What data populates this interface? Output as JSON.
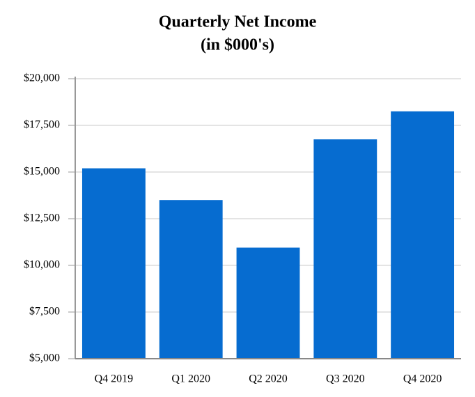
{
  "chart_data": {
    "type": "bar",
    "title": "Quarterly Net Income",
    "subtitle": "(in $000's)",
    "categories": [
      "Q4 2019",
      "Q1 2020",
      "Q2 2020",
      "Q3 2020",
      "Q4 2020"
    ],
    "values": [
      15200,
      13500,
      10950,
      16750,
      18250
    ],
    "color": "#066cd0",
    "ylim": [
      5000,
      20000
    ],
    "yticks": [
      {
        "value": 5000,
        "label": "$5,000"
      },
      {
        "value": 7500,
        "label": "$7,500"
      },
      {
        "value": 10000,
        "label": "$10,000"
      },
      {
        "value": 12500,
        "label": "$12,500"
      },
      {
        "value": 15000,
        "label": "$15,000"
      },
      {
        "value": 17500,
        "label": "$17,500"
      },
      {
        "value": 20000,
        "label": "$20,000"
      }
    ],
    "grid": true
  }
}
